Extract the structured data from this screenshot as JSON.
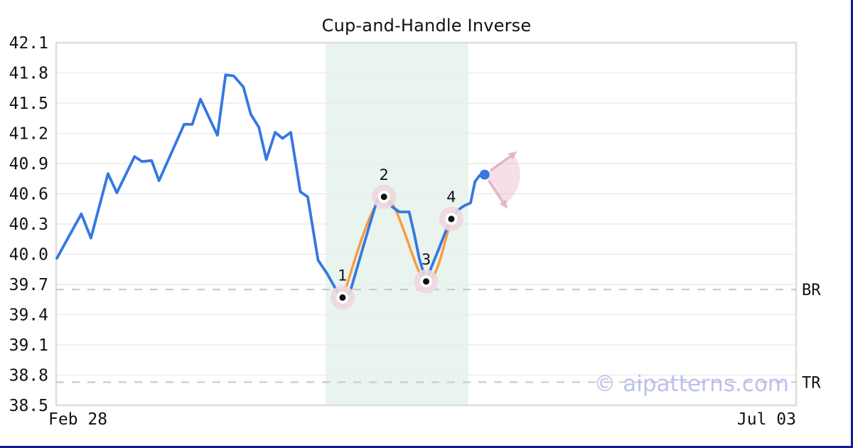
{
  "watermark": "© aipatterns.com",
  "colors": {
    "price_line": "#3478e2",
    "smooth_line": "#f79c42",
    "pattern_zone": "#e9f4ee",
    "point_halo": "#eed7de",
    "gridline": "#ececec",
    "plot_border": "#dddddd",
    "dashed_level": "#cbcbcb",
    "text": "#111111",
    "fan_fill": "#eab9ca",
    "arrow": "#e5a8be",
    "watermark": "#b0b6ee",
    "edge_bar": "#0d1f8c"
  },
  "chart_data": {
    "type": "line",
    "title": "Cup-and-Handle Inverse",
    "xlabel": "",
    "ylabel": "",
    "xlim": [
      0,
      100
    ],
    "ylim": [
      38.5,
      42.1
    ],
    "yticks": [
      42.1,
      41.8,
      41.5,
      41.2,
      40.9,
      40.6,
      40.3,
      40.0,
      39.7,
      39.4,
      39.1,
      38.8,
      38.5
    ],
    "xticks": [
      "Feb 28",
      "Jul 03"
    ],
    "grid": "horizontal",
    "legend": "none",
    "series": [
      {
        "name": "price",
        "color": "#3478e2",
        "points": [
          [
            0.1,
            39.96
          ],
          [
            3.4,
            40.4
          ],
          [
            4.7,
            40.16
          ],
          [
            7.0,
            40.8
          ],
          [
            8.2,
            40.61
          ],
          [
            10.6,
            40.97
          ],
          [
            11.6,
            40.92
          ],
          [
            12.9,
            40.93
          ],
          [
            13.9,
            40.73
          ],
          [
            17.3,
            41.29
          ],
          [
            18.4,
            41.29
          ],
          [
            19.5,
            41.54
          ],
          [
            21.8,
            41.18
          ],
          [
            22.9,
            41.78
          ],
          [
            24.0,
            41.77
          ],
          [
            25.3,
            41.66
          ],
          [
            26.3,
            41.39
          ],
          [
            27.4,
            41.26
          ],
          [
            28.4,
            40.94
          ],
          [
            29.6,
            41.21
          ],
          [
            30.6,
            41.15
          ],
          [
            31.7,
            41.21
          ],
          [
            33.0,
            40.62
          ],
          [
            34.0,
            40.57
          ],
          [
            35.4,
            39.94
          ],
          [
            36.6,
            39.81
          ],
          [
            37.9,
            39.64
          ],
          [
            38.7,
            39.57
          ],
          [
            39.7,
            39.62
          ],
          [
            41.4,
            40.05
          ],
          [
            42.6,
            40.35
          ],
          [
            43.4,
            40.54
          ],
          [
            44.3,
            40.57
          ],
          [
            45.4,
            40.47
          ],
          [
            46.4,
            40.42
          ],
          [
            47.7,
            40.42
          ],
          [
            48.4,
            40.2
          ],
          [
            49.1,
            39.95
          ],
          [
            50.0,
            39.73
          ],
          [
            50.7,
            39.87
          ],
          [
            51.7,
            40.05
          ],
          [
            52.6,
            40.22
          ],
          [
            53.4,
            40.35
          ],
          [
            54.2,
            40.43
          ],
          [
            54.9,
            40.47
          ],
          [
            55.4,
            40.49
          ],
          [
            56.0,
            40.51
          ],
          [
            56.6,
            40.72
          ],
          [
            57.2,
            40.78
          ],
          [
            57.9,
            40.79
          ]
        ]
      },
      {
        "name": "pattern-smooth",
        "color": "#f79c42",
        "smooth": true,
        "points": [
          [
            38.7,
            39.57
          ],
          [
            44.3,
            40.57
          ],
          [
            50.0,
            39.73
          ],
          [
            53.4,
            40.35
          ]
        ]
      }
    ],
    "pattern_points": [
      {
        "label": "1",
        "x": 38.7,
        "value": 39.57
      },
      {
        "label": "2",
        "x": 44.3,
        "value": 40.57
      },
      {
        "label": "3",
        "x": 50.0,
        "value": 39.73
      },
      {
        "label": "4",
        "x": 53.4,
        "value": 40.35
      }
    ],
    "pattern_zone": {
      "x0": 36.4,
      "x1": 55.7
    },
    "levels": [
      {
        "label": "BR",
        "value": 39.65
      },
      {
        "label": "TR",
        "value": 38.73
      }
    ],
    "last_point": {
      "x": 57.9,
      "value": 40.79
    },
    "projection": {
      "up_tip": {
        "x": 62.3,
        "value": 41.02
      },
      "down_tip": {
        "x": 61.0,
        "value": 40.45
      },
      "fan_radius_px": 50
    }
  }
}
